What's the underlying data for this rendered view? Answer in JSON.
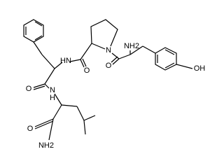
{
  "atoms": [
    {
      "label": "N"
    },
    {
      "label": "O"
    },
    {
      "label": "NH2"
    },
    {
      "label": "OH"
    },
    {
      "label": "HN"
    },
    {
      "label": "O"
    },
    {
      "label": "O"
    },
    {
      "label": "N"
    },
    {
      "label": "H"
    },
    {
      "label": "O"
    },
    {
      "label": "NH2"
    }
  ]
}
